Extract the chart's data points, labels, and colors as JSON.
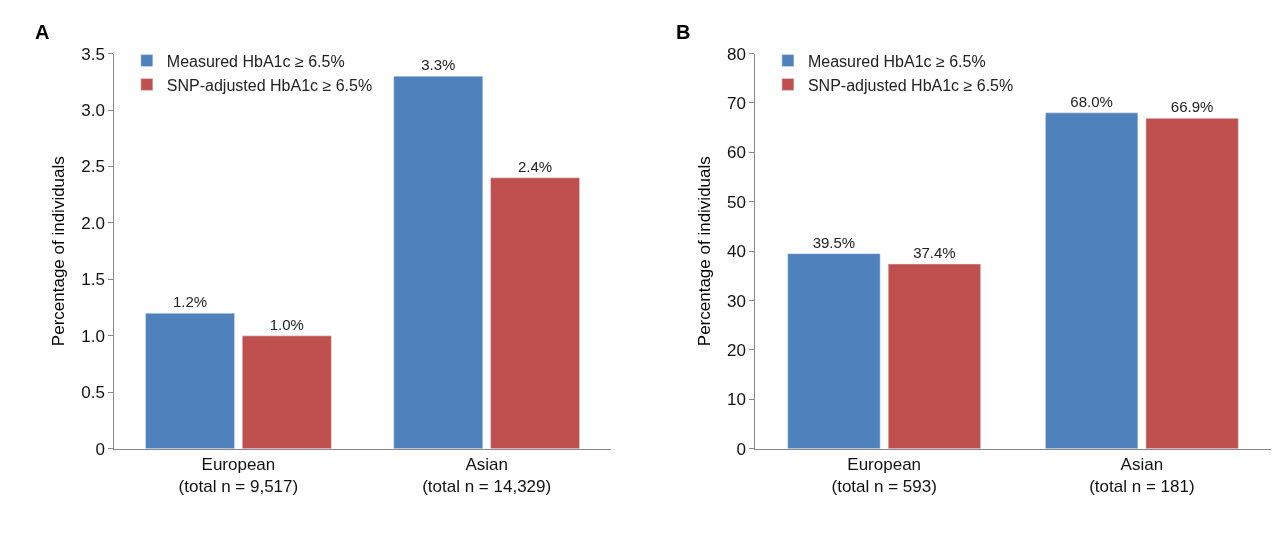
{
  "chart_data": [
    {
      "type": "bar",
      "title": "A",
      "ylabel": "Percentage of individuals",
      "categories": [
        "European\n(total n = 9,517)",
        "Asian\n(total n = 14,329)"
      ],
      "series": [
        {
          "name": "Measured HbA1c ≥ 6.5%",
          "color": "#4f81bd",
          "values": [
            1.2,
            3.3
          ],
          "value_labels": [
            "1.2%",
            "3.3%"
          ]
        },
        {
          "name": "SNP-adjusted HbA1c ≥ 6.5%",
          "color": "#c0504d",
          "values": [
            1.0,
            2.4
          ],
          "value_labels": [
            "1.0%",
            "2.4%"
          ]
        }
      ],
      "ylim": [
        0,
        3.5
      ],
      "yticks": [
        0,
        0.5,
        {
          "value": 1,
          "label": "1.0"
        },
        1.5,
        {
          "value": 2,
          "label": "2.0"
        },
        2.5,
        {
          "value": 3,
          "label": "3.0"
        },
        3.5
      ],
      "legend": "top left"
    },
    {
      "type": "bar",
      "title": "B",
      "ylabel": "Percentage of individuals",
      "categories": [
        "European\n(total n = 593)",
        "Asian\n(total n = 181)"
      ],
      "series": [
        {
          "name": "Measured HbA1c ≥ 6.5%",
          "color": "#4f81bd",
          "values": [
            39.5,
            68.0
          ],
          "value_labels": [
            "39.5%",
            "68.0%"
          ]
        },
        {
          "name": "SNP-adjusted HbA1c ≥ 6.5%",
          "color": "#c0504d",
          "values": [
            37.4,
            66.9
          ],
          "value_labels": [
            "37.4%",
            "66.9%"
          ]
        }
      ],
      "ylim": [
        0,
        80
      ],
      "yticks": [
        0,
        10,
        20,
        30,
        40,
        50,
        60,
        70,
        80
      ],
      "legend": "top left"
    }
  ]
}
